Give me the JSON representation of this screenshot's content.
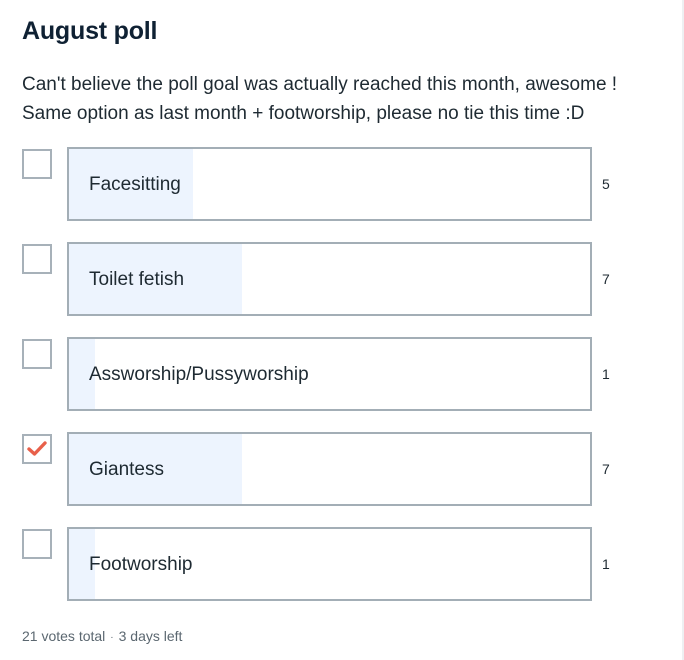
{
  "poll": {
    "title": "August poll",
    "description_line1": "Can't believe the poll goal was actually reached this month, awesome !",
    "description_line2": "Same option as last month + footworship, please no tie this time :D",
    "options": [
      {
        "label": "Facesitting",
        "votes": "5",
        "share": 0.238,
        "checked": false
      },
      {
        "label": "Toilet fetish",
        "votes": "7",
        "share": 0.333,
        "checked": false
      },
      {
        "label": "Assworship/Pussyworship",
        "votes": "1",
        "share": 0.048,
        "checked": false
      },
      {
        "label": "Giantess",
        "votes": "7",
        "share": 0.333,
        "checked": true
      },
      {
        "label": "Footworship",
        "votes": "1",
        "share": 0.048,
        "checked": false
      }
    ],
    "total_votes": "21 votes total",
    "separator": "·",
    "time_left": "3 days left",
    "check_color": "#e8604a",
    "fill_color": "#edf4fe"
  }
}
